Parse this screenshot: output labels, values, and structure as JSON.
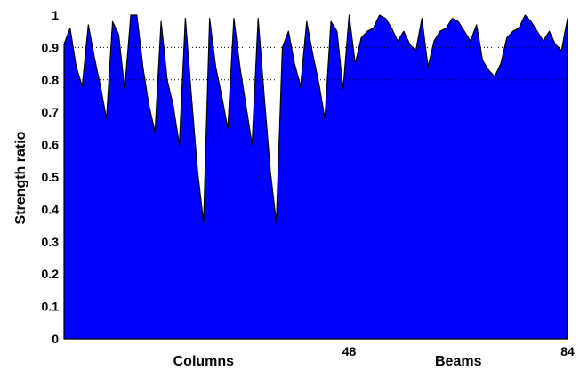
{
  "chart_data": {
    "type": "area",
    "ylabel": "Strength ratio",
    "ylim": [
      0,
      1
    ],
    "xlim": [
      1,
      84
    ],
    "yticks": [
      "0",
      "0.1",
      "0.2",
      "0.3",
      "0.4",
      "0.5",
      "0.6",
      "0.7",
      "0.8",
      "0.9",
      "1"
    ],
    "xticks": [
      {
        "value": 48,
        "label": "48"
      },
      {
        "value": 84,
        "label": "84"
      }
    ],
    "group_labels": [
      {
        "label": "Columns",
        "center": 24
      },
      {
        "label": "Beams",
        "center": 66
      }
    ],
    "dotted_gridlines_at": [
      0.8,
      0.9
    ],
    "fill_color": "#0000ff",
    "series": [
      {
        "x": [
          1,
          2,
          3,
          4,
          5,
          6,
          7,
          8,
          9,
          10,
          11,
          12,
          13,
          14,
          15,
          16,
          17,
          18,
          19,
          20,
          21,
          22,
          23,
          24,
          25,
          26,
          27,
          28,
          29,
          30,
          31,
          32,
          33,
          34,
          35,
          36,
          37,
          38,
          39,
          40,
          41,
          42,
          43,
          44,
          45,
          46,
          47,
          48,
          49,
          50,
          51,
          52,
          53,
          54,
          55,
          56,
          57,
          58,
          59,
          60,
          61,
          62,
          63,
          64,
          65,
          66,
          67,
          68,
          69,
          70,
          71,
          72,
          73,
          74,
          75,
          76,
          77,
          78,
          79,
          80,
          81,
          82,
          83,
          84
        ],
        "y": [
          0.91,
          0.96,
          0.84,
          0.78,
          0.97,
          0.87,
          0.78,
          0.68,
          0.98,
          0.94,
          0.77,
          1.0,
          1.0,
          0.84,
          0.72,
          0.64,
          0.98,
          0.8,
          0.72,
          0.6,
          0.99,
          0.75,
          0.52,
          0.36,
          0.99,
          0.84,
          0.75,
          0.65,
          0.99,
          0.84,
          0.72,
          0.6,
          0.99,
          0.75,
          0.52,
          0.36,
          0.9,
          0.95,
          0.85,
          0.78,
          0.98,
          0.88,
          0.79,
          0.68,
          0.98,
          0.95,
          0.77,
          1.0,
          0.85,
          0.93,
          0.95,
          0.96,
          1.0,
          0.99,
          0.96,
          0.92,
          0.95,
          0.91,
          0.89,
          0.99,
          0.84,
          0.92,
          0.95,
          0.96,
          0.99,
          0.98,
          0.95,
          0.92,
          0.97,
          0.86,
          0.83,
          0.81,
          0.85,
          0.93,
          0.95,
          0.96,
          1.0,
          0.98,
          0.95,
          0.92,
          0.95,
          0.91,
          0.89,
          0.99
        ]
      }
    ]
  }
}
